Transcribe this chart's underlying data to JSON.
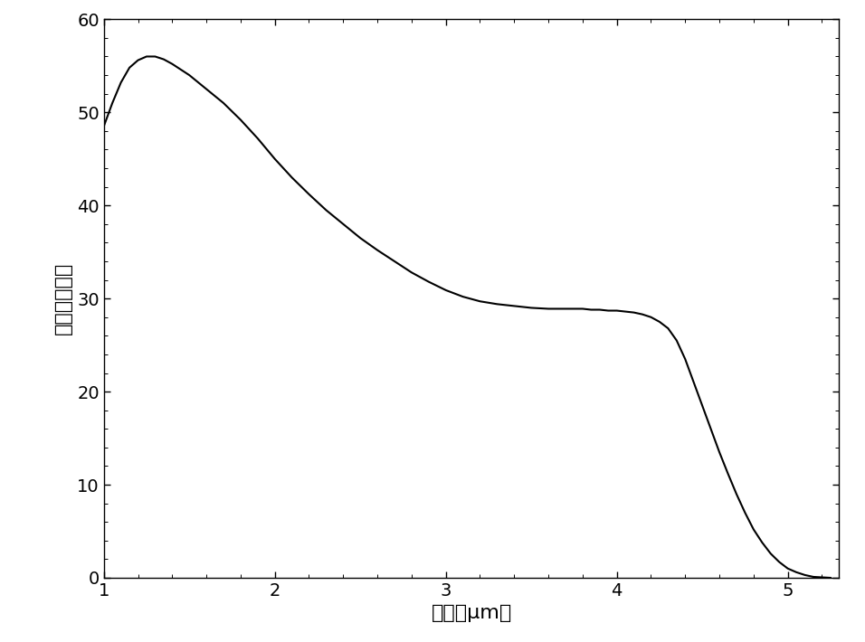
{
  "title": "",
  "xlabel": "波数（μm）",
  "ylabel": "透过率（％）",
  "xlim": [
    1,
    5.3
  ],
  "ylim": [
    0,
    60
  ],
  "xticks": [
    1,
    2,
    3,
    4,
    5
  ],
  "yticks": [
    0,
    10,
    20,
    30,
    40,
    50,
    60
  ],
  "line_color": "#000000",
  "line_width": 1.5,
  "background_color": "#ffffff",
  "x_data": [
    1.0,
    1.05,
    1.1,
    1.15,
    1.2,
    1.25,
    1.3,
    1.35,
    1.4,
    1.5,
    1.6,
    1.7,
    1.8,
    1.9,
    2.0,
    2.1,
    2.2,
    2.3,
    2.4,
    2.5,
    2.6,
    2.7,
    2.8,
    2.9,
    3.0,
    3.1,
    3.2,
    3.3,
    3.4,
    3.5,
    3.6,
    3.7,
    3.8,
    3.85,
    3.9,
    3.95,
    4.0,
    4.05,
    4.1,
    4.15,
    4.2,
    4.25,
    4.3,
    4.35,
    4.4,
    4.45,
    4.5,
    4.55,
    4.6,
    4.65,
    4.7,
    4.75,
    4.8,
    4.85,
    4.9,
    4.95,
    5.0,
    5.05,
    5.1,
    5.15,
    5.2,
    5.25
  ],
  "y_data": [
    48.5,
    51.0,
    53.2,
    54.8,
    55.6,
    56.0,
    56.0,
    55.7,
    55.2,
    54.0,
    52.5,
    51.0,
    49.2,
    47.2,
    45.0,
    43.0,
    41.2,
    39.5,
    38.0,
    36.5,
    35.2,
    34.0,
    32.8,
    31.8,
    30.9,
    30.2,
    29.7,
    29.4,
    29.2,
    29.0,
    28.9,
    28.9,
    28.9,
    28.8,
    28.8,
    28.7,
    28.7,
    28.6,
    28.5,
    28.3,
    28.0,
    27.5,
    26.8,
    25.5,
    23.5,
    21.0,
    18.5,
    16.0,
    13.5,
    11.2,
    9.0,
    7.0,
    5.2,
    3.8,
    2.6,
    1.7,
    1.0,
    0.6,
    0.3,
    0.1,
    0.05,
    0.0
  ]
}
